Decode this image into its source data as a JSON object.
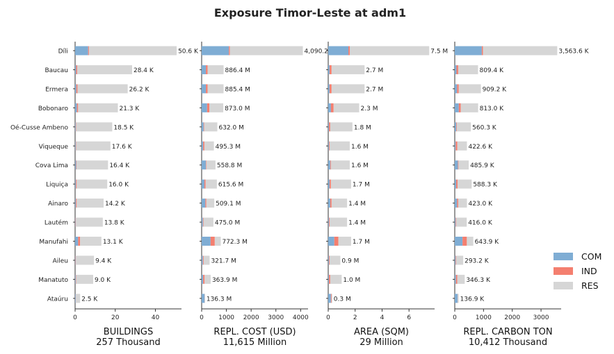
{
  "chart_data": {
    "type": "bar",
    "orientation": "horizontal",
    "stacked": true,
    "title": "Exposure Timor-Leste at adm1",
    "regions": [
      "Díli",
      "Baucau",
      "Ermera",
      "Bobonaro",
      "Oé-Cusse Ambeno",
      "Viqueque",
      "Cova Lima",
      "Liquiça",
      "Ainaro",
      "Lautém",
      "Manufahi",
      "Aileu",
      "Manatuto",
      "Ataúru"
    ],
    "legend": [
      {
        "name": "COM",
        "color": "#7fadd4"
      },
      {
        "name": "IND",
        "color": "#f47f6f"
      },
      {
        "name": "RES",
        "color": "#d6d6d6"
      }
    ],
    "legend_position": "right",
    "panels": [
      {
        "xlabel": "BUILDINGS",
        "total_label": "257 Thousand",
        "xlim": [
          0,
          53
        ],
        "ticks": [
          "0",
          "20",
          "40"
        ],
        "tick_values": [
          0,
          20,
          40
        ],
        "series": {
          "COM": [
            6.5,
            0.5,
            0.6,
            0.9,
            0.3,
            0.3,
            0.5,
            0.4,
            0.4,
            0.2,
            1.5,
            0.2,
            0.3,
            0.3
          ],
          "IND": [
            0.4,
            0.6,
            0.6,
            0.6,
            0.2,
            0.2,
            0.2,
            0.4,
            0.4,
            0.2,
            1.0,
            0.2,
            0.2,
            0.1
          ],
          "RES": [
            43.7,
            27.3,
            25.0,
            19.8,
            18.0,
            17.1,
            15.7,
            15.2,
            13.4,
            13.4,
            10.6,
            9.0,
            8.5,
            2.1
          ]
        },
        "labels": [
          "50.6 K",
          "28.4 K",
          "26.2 K",
          "21.3 K",
          "18.5 K",
          "17.6 K",
          "16.4 K",
          "16.0 K",
          "14.2 K",
          "13.8 K",
          "13.1 K",
          "9.4 K",
          "9.0 K",
          "2.5 K"
        ]
      },
      {
        "xlabel": "REPL. COST (USD)",
        "total_label": "11,615 Million",
        "xlim": [
          0,
          4300
        ],
        "ticks": [
          "0",
          "1000",
          "2000",
          "3000",
          "4000"
        ],
        "tick_values": [
          0,
          1000,
          2000,
          3000,
          4000
        ],
        "series": {
          "COM": [
            1100,
            170,
            170,
            220,
            80,
            60,
            170,
            110,
            150,
            50,
            360,
            50,
            60,
            120
          ],
          "IND": [
            40,
            70,
            70,
            90,
            20,
            50,
            20,
            50,
            40,
            20,
            170,
            30,
            60,
            5
          ],
          "RES": [
            2950.2,
            646.4,
            645.4,
            563.0,
            532.0,
            385.3,
            368.8,
            455.6,
            319.1,
            405.0,
            242.3,
            241.7,
            243.9,
            11.3
          ]
        },
        "labels": [
          "4,090.2",
          "886.4 M",
          "885.4 M",
          "873.0 M",
          "632.0 M",
          "495.3 M",
          "558.8 M",
          "615.6 M",
          "509.1 M",
          "475.0 M",
          "772.3 M",
          "321.7 M",
          "363.9 M",
          "136.3 M"
        ]
      },
      {
        "xlabel": "AREA (SQM)",
        "total_label": "29 Million",
        "xlim": [
          0,
          7.9
        ],
        "ticks": [
          "0",
          "2",
          "4",
          "6"
        ],
        "tick_values": [
          0,
          2,
          4,
          6
        ],
        "series": {
          "COM": [
            1.5,
            0.1,
            0.1,
            0.2,
            0.05,
            0.05,
            0.15,
            0.1,
            0.15,
            0.05,
            0.45,
            0.05,
            0.05,
            0.2
          ],
          "IND": [
            0.1,
            0.15,
            0.15,
            0.2,
            0.1,
            0.05,
            0.05,
            0.1,
            0.1,
            0.05,
            0.3,
            0.05,
            0.1,
            0.05
          ],
          "RES": [
            5.9,
            2.45,
            2.45,
            1.9,
            1.65,
            1.5,
            1.4,
            1.5,
            1.15,
            1.3,
            0.95,
            0.8,
            0.85,
            0.05
          ]
        },
        "labels": [
          "7.5 M",
          "2.7 M",
          "2.7 M",
          "2.3 M",
          "1.8 M",
          "1.6 M",
          "1.6 M",
          "1.7 M",
          "1.4 M",
          "1.4 M",
          "1.7 M",
          "0.9 M",
          "1.0 M",
          "0.3 M"
        ]
      },
      {
        "xlabel": "REPL. CARBON TON",
        "total_label": "10,412 Thousand",
        "xlim": [
          0,
          3700
        ],
        "ticks": [
          "0",
          "1000",
          "2000",
          "3000"
        ],
        "tick_values": [
          0,
          1000,
          2000,
          3000
        ],
        "series": {
          "COM": [
            940,
            60,
            80,
            140,
            50,
            30,
            110,
            50,
            80,
            30,
            270,
            30,
            40,
            100
          ],
          "IND": [
            40,
            60,
            60,
            70,
            20,
            60,
            20,
            50,
            40,
            20,
            150,
            20,
            50,
            5
          ],
          "RES": [
            2583.6,
            689.4,
            769.2,
            603.0,
            490.3,
            332.6,
            355.9,
            488.3,
            303.0,
            366.0,
            223.9,
            243.2,
            256.3,
            31.9
          ]
        },
        "labels": [
          "3,563.6 K",
          "809.4 K",
          "909.2 K",
          "813.0 K",
          "560.3 K",
          "422.6 K",
          "485.9 K",
          "588.3 K",
          "423.0 K",
          "416.0 K",
          "643.9 K",
          "293.2 K",
          "346.3 K",
          "136.9 K"
        ]
      }
    ]
  }
}
